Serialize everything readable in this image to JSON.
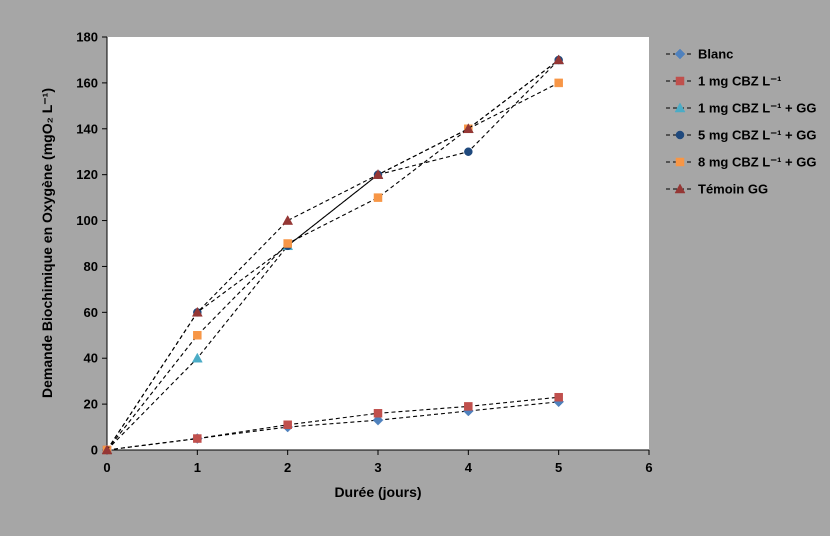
{
  "chart_data": {
    "type": "line",
    "xlabel": "Durée (jours)",
    "ylabel": "Demande Biochimique en Oxygène (mgO₂ L⁻¹)",
    "xlim": [
      0,
      6
    ],
    "ylim": [
      0,
      180
    ],
    "xticks": [
      0,
      1,
      2,
      3,
      4,
      5,
      6
    ],
    "yticks": [
      0,
      20,
      40,
      60,
      80,
      100,
      120,
      140,
      160,
      180
    ],
    "grid": false,
    "legend_position": "right",
    "x": [
      0,
      1,
      2,
      3,
      4,
      5
    ],
    "series": [
      {
        "name": "Blanc",
        "marker": "diamond",
        "color": "#4f81bd",
        "values": [
          0,
          5,
          10,
          13,
          17,
          21
        ]
      },
      {
        "name": "1 mg CBZ L⁻¹",
        "marker": "square",
        "color": "#c0504d",
        "values": [
          0,
          5,
          11,
          16,
          19,
          23
        ]
      },
      {
        "name": "1 mg CBZ L⁻¹ + GG",
        "marker": "triangle",
        "color": "#4bacc6",
        "values": [
          0,
          40,
          89,
          120,
          140,
          170
        ]
      },
      {
        "name": "5 mg CBZ L⁻¹ + GG",
        "marker": "circle",
        "color": "#1f497d",
        "values": [
          0,
          60,
          89,
          120,
          130,
          170
        ]
      },
      {
        "name": "8 mg CBZ L⁻¹ + GG",
        "marker": "square",
        "color": "#f79646",
        "values": [
          0,
          50,
          90,
          110,
          140,
          160
        ]
      },
      {
        "name": "Témoin GG",
        "marker": "triangle",
        "color": "#953735",
        "values": [
          0,
          60,
          100,
          120,
          140,
          170
        ]
      }
    ]
  }
}
